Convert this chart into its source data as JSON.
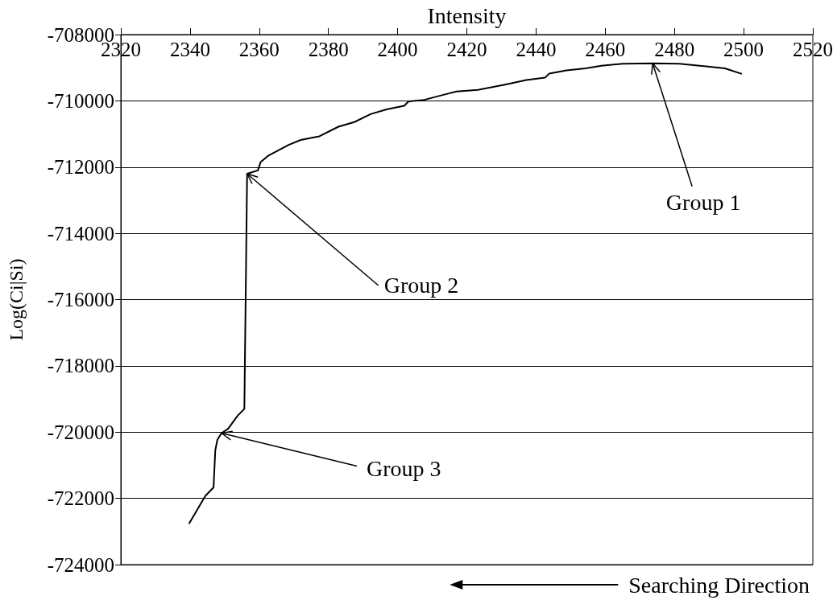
{
  "chart_data": {
    "type": "line",
    "xlabel": "Intensity",
    "ylabel": "Log(Ci|Si)",
    "x": [
      2339.8,
      2344.4,
      2346.8,
      2347.3,
      2347.9,
      2349.1,
      2351.0,
      2353.8,
      2355.7,
      2356.5,
      2359.6,
      2360.4,
      2362.7,
      2368.5,
      2372.0,
      2377.4,
      2382.9,
      2387.5,
      2392.2,
      2396.8,
      2401.9,
      2403.1,
      2407.7,
      2413.9,
      2417.0,
      2423.2,
      2431.0,
      2437.2,
      2442.6,
      2443.8,
      2448.8,
      2454.3,
      2458.9,
      2465.1,
      2473.7,
      2481.4,
      2489.1,
      2494.6,
      2499.3
    ],
    "values": [
      -722750,
      -721930,
      -721670,
      -720550,
      -720230,
      -720030,
      -719900,
      -719500,
      -719300,
      -712200,
      -712100,
      -711850,
      -711650,
      -711330,
      -711180,
      -711070,
      -710780,
      -710640,
      -710400,
      -710260,
      -710150,
      -710020,
      -709970,
      -709800,
      -709720,
      -709670,
      -709510,
      -709370,
      -709300,
      -709180,
      -709080,
      -709020,
      -708940,
      -708880,
      -708870,
      -708880,
      -708960,
      -709020,
      -709180
    ],
    "color": "#000000",
    "xlim": [
      2320,
      2520
    ],
    "xticks": [
      2320,
      2340,
      2360,
      2380,
      2400,
      2420,
      2440,
      2460,
      2480,
      2500,
      2520
    ],
    "ylim": [
      -724000,
      -708000
    ],
    "yticks": [
      -724000,
      -722000,
      -720000,
      -718000,
      -716000,
      -714000,
      -712000,
      -710000,
      -708000
    ],
    "grid": "y",
    "marker": "none",
    "line_style": "solid",
    "annotations": [
      {
        "text": "Group 1",
        "x": 2473.7,
        "y": -708870
      },
      {
        "text": "Group 2",
        "x": 2356.5,
        "y": -712200
      },
      {
        "text": "Group 3",
        "x": 2349.1,
        "y": -720030
      },
      "Searching Direction"
    ]
  }
}
